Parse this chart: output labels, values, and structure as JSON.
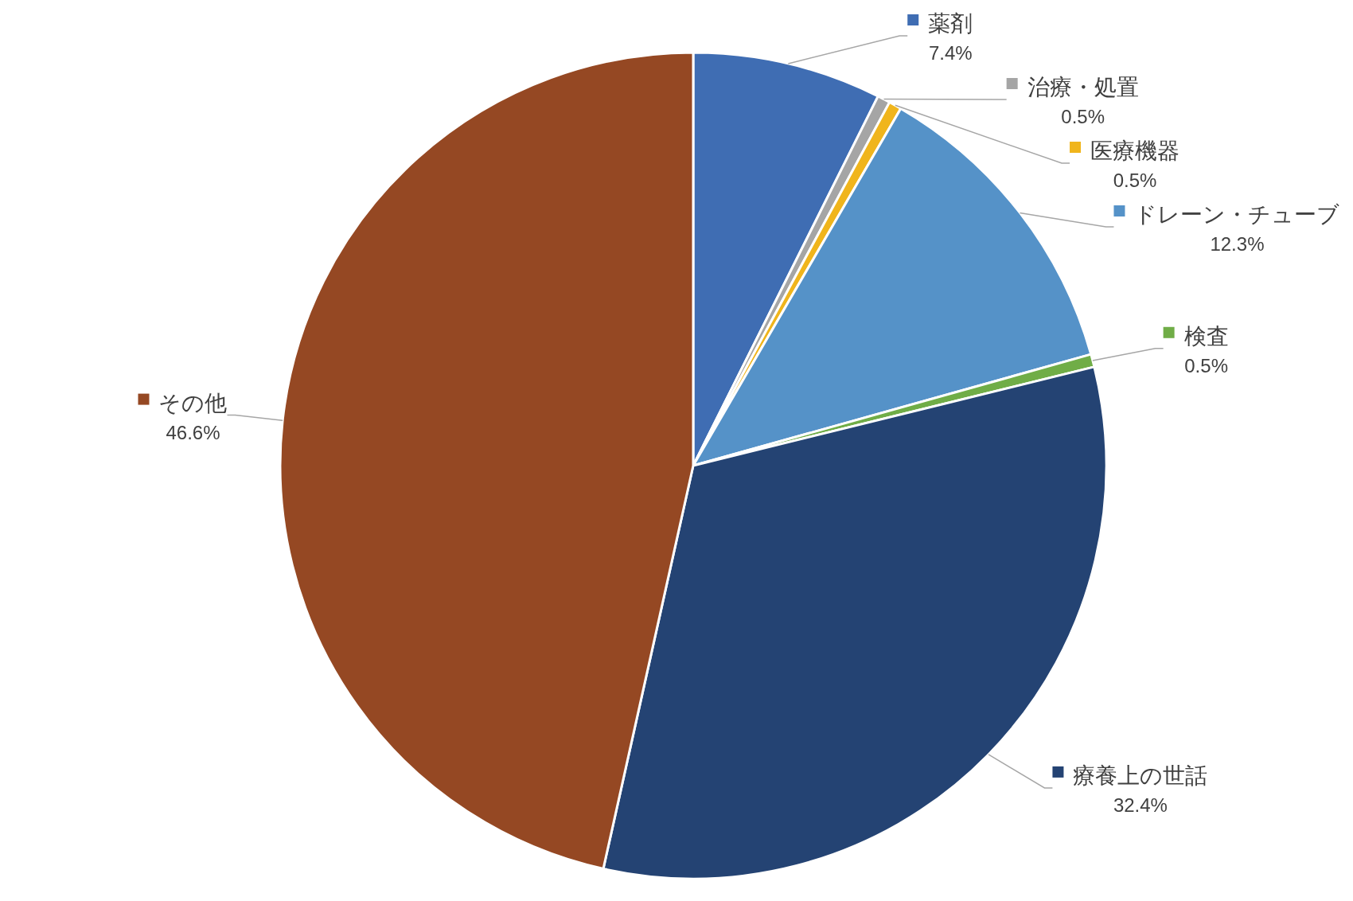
{
  "chart_data": {
    "type": "pie",
    "legend": "right",
    "categories": [
      "薬剤",
      "治療・処置",
      "医療機器",
      "ドレーン・チューブ",
      "検査",
      "療養上の世話",
      "その他"
    ],
    "values": [
      7.4,
      0.5,
      0.5,
      12.3,
      0.5,
      32.4,
      46.6
    ],
    "value_labels": [
      "7.4%",
      "0.5%",
      "0.5%",
      "12.3%",
      "0.5%",
      "32.4%",
      "46.6%"
    ],
    "colors": [
      "#3f6db3",
      "#a5a5a5",
      "#f0b51c",
      "#5592c8",
      "#70ad47",
      "#244373",
      "#954823"
    ]
  }
}
